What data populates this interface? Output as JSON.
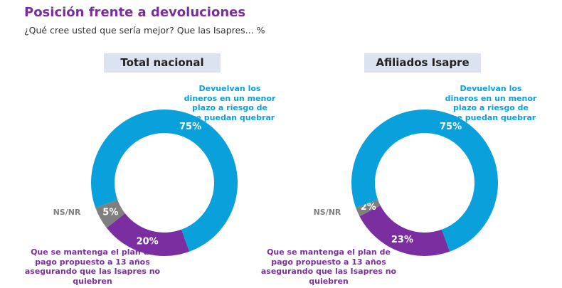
{
  "header": {
    "title": "Posición frente a devoluciones",
    "subtitle": "¿Qué cree usted que sería mejor? Que las Isapres... %"
  },
  "chart_data": [
    {
      "type": "donut",
      "title": "Total nacional",
      "categories": [
        "Devuelvan los dineros en un menor plazo a riesgo de que puedan quebrar",
        "Que se mantenga el plan de pago propuesto a 13 años asegurando que las Isapres no quiebren",
        "NS/NR"
      ],
      "values": [
        75,
        20,
        5
      ],
      "value_labels": [
        "75%",
        "20%",
        "5%"
      ],
      "colors": [
        "#0aa0dc",
        "#7b2ea0",
        "#7f7f7f"
      ]
    },
    {
      "type": "donut",
      "title": "Afiliados Isapre",
      "categories": [
        "Devuelvan los dineros en un menor plazo a riesgo de que puedan quebrar",
        "Que se mantenga el plan de pago propuesto a 13 años asegurando que las Isapres no quiebren",
        "NS/NR"
      ],
      "values": [
        75,
        23,
        2
      ],
      "value_labels": [
        "75%",
        "23%",
        "2%"
      ],
      "colors": [
        "#0aa0dc",
        "#7b2ea0",
        "#7f7f7f"
      ]
    }
  ]
}
